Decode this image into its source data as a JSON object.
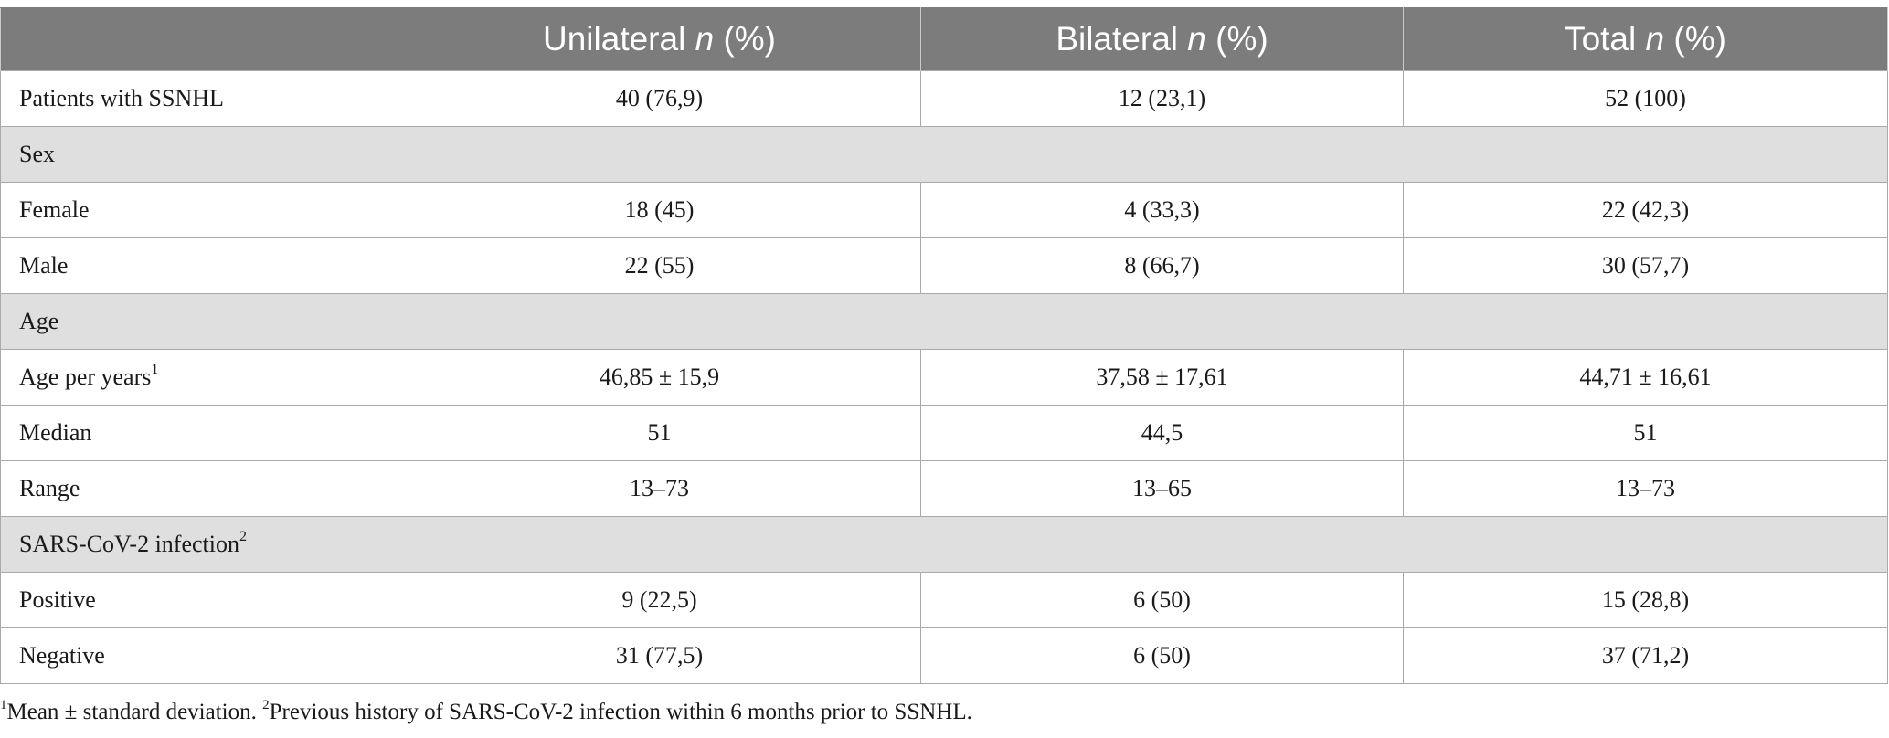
{
  "header": {
    "col1": "",
    "unilateral": "Unilateral",
    "bilateral": "Bilateral",
    "total": "Total",
    "n_italic": "n",
    "pct": "(%)"
  },
  "rows": [
    {
      "type": "data",
      "label": "Patients with SSNHL",
      "sup": "",
      "unilateral": "40 (76,9)",
      "bilateral": "12 (23,1)",
      "total": "52 (100)"
    },
    {
      "type": "section",
      "label": "Sex",
      "sup": ""
    },
    {
      "type": "data",
      "label": "Female",
      "sup": "",
      "unilateral": "18 (45)",
      "bilateral": "4 (33,3)",
      "total": "22 (42,3)"
    },
    {
      "type": "data",
      "label": "Male",
      "sup": "",
      "unilateral": "22 (55)",
      "bilateral": "8 (66,7)",
      "total": "30 (57,7)"
    },
    {
      "type": "section",
      "label": "Age",
      "sup": ""
    },
    {
      "type": "data",
      "label": "Age per years",
      "sup": "1",
      "unilateral": "46,85 ± 15,9",
      "bilateral": "37,58 ± 17,61",
      "total": "44,71 ± 16,61"
    },
    {
      "type": "data",
      "label": "Median",
      "sup": "",
      "unilateral": "51",
      "bilateral": "44,5",
      "total": "51"
    },
    {
      "type": "data",
      "label": "Range",
      "sup": "",
      "unilateral": "13–73",
      "bilateral": "13–65",
      "total": "13–73"
    },
    {
      "type": "section",
      "label": "SARS-CoV-2 infection",
      "sup": "2"
    },
    {
      "type": "data",
      "label": "Positive",
      "sup": "",
      "unilateral": "9 (22,5)",
      "bilateral": "6 (50)",
      "total": "15 (28,8)"
    },
    {
      "type": "data",
      "label": "Negative",
      "sup": "",
      "unilateral": "31 (77,5)",
      "bilateral": "6 (50)",
      "total": "37 (71,2)"
    }
  ],
  "footnote": {
    "sup1": "1",
    "text1": "Mean ± standard deviation. ",
    "sup2": "2",
    "text2": "Previous history of SARS-CoV-2 infection within 6 months prior to SSNHL."
  }
}
